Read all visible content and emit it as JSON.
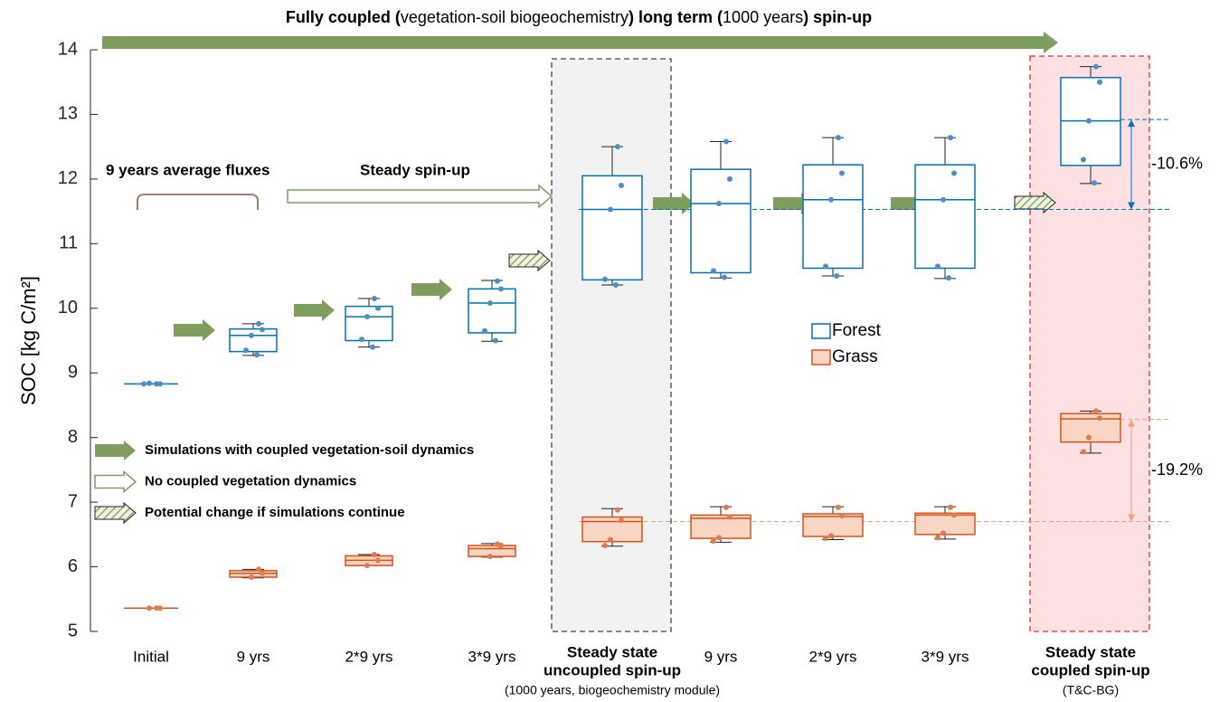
{
  "chart_data": {
    "type": "box",
    "title_runs": [
      {
        "text": "Fully coupled (",
        "bold": true
      },
      {
        "text": "vegetation-soil biogeochemistry",
        "bold": false
      },
      {
        "text": ") long term (",
        "bold": true
      },
      {
        "text": "1000 years",
        "bold": false
      },
      {
        "text": ") spin-up",
        "bold": true
      }
    ],
    "ylabel": "SOC [kg C/m²]",
    "ylim": [
      5,
      14
    ],
    "yticks": [
      5,
      6,
      7,
      8,
      9,
      10,
      11,
      12,
      13,
      14
    ],
    "categories": [
      "Initial",
      "9 yrs",
      "2*9 yrs",
      "3*9 yrs",
      [
        "Steady state",
        "uncoupled spin-up"
      ],
      "9 yrs",
      "2*9 yrs",
      "3*9 yrs",
      [
        "Steady state",
        "coupled spin-up"
      ]
    ],
    "category_notes": [
      null,
      null,
      null,
      null,
      "(1000 years, biogeochemistry module)",
      null,
      null,
      null,
      "(T&C-BG)"
    ],
    "series": [
      {
        "name": "Forest",
        "color": "#0072BD",
        "fill": "#ffffff",
        "point_color": "#4a90c8",
        "boxes": [
          {
            "min": 8.83,
            "q1": 8.83,
            "median": 8.83,
            "q3": 8.83,
            "max": 8.83,
            "points": [
              8.83,
              8.83,
              8.84,
              8.83
            ]
          },
          {
            "min": 9.27,
            "q1": 9.33,
            "median": 9.58,
            "q3": 9.68,
            "max": 9.76,
            "points": [
              9.76,
              9.67,
              9.58,
              9.35,
              9.28
            ]
          },
          {
            "min": 9.4,
            "q1": 9.5,
            "median": 9.87,
            "q3": 10.03,
            "max": 10.15,
            "points": [
              10.15,
              10.0,
              9.87,
              9.52,
              9.4
            ]
          },
          {
            "min": 9.49,
            "q1": 9.62,
            "median": 10.08,
            "q3": 10.3,
            "max": 10.43,
            "points": [
              10.42,
              10.3,
              10.08,
              9.65,
              9.5
            ]
          },
          {
            "min": 10.36,
            "q1": 10.44,
            "median": 11.53,
            "q3": 12.05,
            "max": 12.5,
            "points": [
              12.5,
              11.9,
              11.53,
              10.45,
              10.36
            ]
          },
          {
            "min": 10.47,
            "q1": 10.55,
            "median": 11.62,
            "q3": 12.15,
            "max": 12.58,
            "points": [
              12.58,
              12.0,
              11.62,
              10.58,
              10.48
            ]
          },
          {
            "min": 10.5,
            "q1": 10.62,
            "median": 11.68,
            "q3": 12.22,
            "max": 12.64,
            "points": [
              12.64,
              12.09,
              11.68,
              10.65,
              10.5
            ]
          },
          {
            "min": 10.46,
            "q1": 10.62,
            "median": 11.68,
            "q3": 12.22,
            "max": 12.64,
            "points": [
              12.64,
              12.09,
              11.68,
              10.65,
              10.47
            ]
          },
          {
            "min": 11.93,
            "q1": 12.21,
            "median": 12.9,
            "q3": 13.57,
            "max": 13.74,
            "points": [
              13.74,
              13.5,
              12.9,
              12.3,
              11.94
            ]
          }
        ]
      },
      {
        "name": "Grass",
        "color": "#D95319",
        "fill": "#f9d6c4",
        "point_color": "#e07b50",
        "boxes": [
          {
            "min": 5.36,
            "q1": 5.36,
            "median": 5.36,
            "q3": 5.36,
            "max": 5.36,
            "points": [
              5.36,
              5.36,
              5.36
            ]
          },
          {
            "min": 5.83,
            "q1": 5.84,
            "median": 5.9,
            "q3": 5.94,
            "max": 5.96,
            "points": [
              5.96,
              5.9,
              5.84
            ]
          },
          {
            "min": 6.02,
            "q1": 6.02,
            "median": 6.1,
            "q3": 6.17,
            "max": 6.19,
            "points": [
              6.19,
              6.1,
              6.02
            ]
          },
          {
            "min": 6.15,
            "q1": 6.16,
            "median": 6.28,
            "q3": 6.33,
            "max": 6.36,
            "points": [
              6.35,
              6.33,
              6.16
            ]
          },
          {
            "min": 6.32,
            "q1": 6.39,
            "median": 6.7,
            "q3": 6.77,
            "max": 6.9,
            "points": [
              6.88,
              6.72,
              6.42,
              6.33
            ]
          },
          {
            "min": 6.38,
            "q1": 6.44,
            "median": 6.75,
            "q3": 6.8,
            "max": 6.93,
            "points": [
              6.92,
              6.77,
              6.45,
              6.4
            ]
          },
          {
            "min": 6.42,
            "q1": 6.47,
            "median": 6.78,
            "q3": 6.82,
            "max": 6.93,
            "points": [
              6.92,
              6.79,
              6.48,
              6.44
            ]
          },
          {
            "min": 6.43,
            "q1": 6.5,
            "median": 6.8,
            "q3": 6.83,
            "max": 6.93,
            "points": [
              6.92,
              6.8,
              6.52,
              6.45
            ]
          },
          {
            "min": 7.76,
            "q1": 7.93,
            "median": 8.29,
            "q3": 8.37,
            "max": 8.41,
            "points": [
              8.41,
              8.3,
              8.0,
              7.78
            ]
          }
        ]
      }
    ],
    "reference_lines": [
      {
        "values": [
          12.92,
          11.53
        ],
        "color": "#0072BD",
        "label": "-10.6%"
      },
      {
        "values": [
          8.28,
          6.7
        ],
        "color": "#eda083",
        "label": "-19.2%"
      }
    ],
    "annotations": [
      "9 years average fluxes",
      "Steady spin-up"
    ],
    "arrow_legend": [
      "Simulations with coupled vegetation-soil dynamics",
      "No coupled vegetation dynamics",
      "Potential change if simulations continue"
    ]
  }
}
